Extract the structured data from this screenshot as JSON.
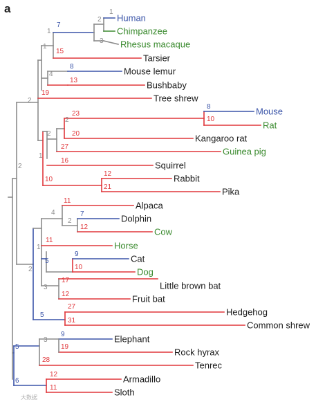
{
  "panel_label": "a",
  "watermark": "大数据",
  "colors": {
    "grey": "#8c8c8c",
    "red": "#e0363a",
    "blue": "#3a54a8",
    "green": "#3a8a2e",
    "black": "#1a1a1a"
  },
  "taxa": [
    {
      "name": "Human",
      "color": "blue"
    },
    {
      "name": "Chimpanzee",
      "color": "green"
    },
    {
      "name": "Rhesus macaque",
      "color": "green"
    },
    {
      "name": "Tarsier",
      "color": "black"
    },
    {
      "name": "Mouse lemur",
      "color": "black"
    },
    {
      "name": "Bushbaby",
      "color": "black"
    },
    {
      "name": "Tree shrew",
      "color": "black"
    },
    {
      "name": "Mouse",
      "color": "blue"
    },
    {
      "name": "Rat",
      "color": "green"
    },
    {
      "name": "Kangaroo rat",
      "color": "black"
    },
    {
      "name": "Guinea pig",
      "color": "green"
    },
    {
      "name": "Squirrel",
      "color": "black"
    },
    {
      "name": "Rabbit",
      "color": "black"
    },
    {
      "name": "Pika",
      "color": "black"
    },
    {
      "name": "Alpaca",
      "color": "black"
    },
    {
      "name": "Dolphin",
      "color": "black"
    },
    {
      "name": "Cow",
      "color": "green"
    },
    {
      "name": "Horse",
      "color": "green"
    },
    {
      "name": "Cat",
      "color": "black"
    },
    {
      "name": "Dog",
      "color": "green"
    },
    {
      "name": "Little brown bat",
      "color": "black"
    },
    {
      "name": "Fruit bat",
      "color": "black"
    },
    {
      "name": "Hedgehog",
      "color": "black"
    },
    {
      "name": "Common shrew",
      "color": "black"
    },
    {
      "name": "Elephant",
      "color": "black"
    },
    {
      "name": "Rock hyrax",
      "color": "black"
    },
    {
      "name": "Tenrec",
      "color": "black"
    },
    {
      "name": "Armadillo",
      "color": "black"
    },
    {
      "name": "Sloth",
      "color": "black"
    }
  ],
  "node_labels": [
    {
      "text": "1",
      "color": "grey"
    },
    {
      "text": "2",
      "color": "grey"
    },
    {
      "text": "3",
      "color": "grey"
    },
    {
      "text": "7",
      "color": "blue"
    },
    {
      "text": "1",
      "color": "grey"
    },
    {
      "text": "1",
      "color": "grey"
    },
    {
      "text": "15",
      "color": "red"
    },
    {
      "text": "4",
      "color": "grey"
    },
    {
      "text": "8",
      "color": "blue"
    },
    {
      "text": "13",
      "color": "red"
    },
    {
      "text": "19",
      "color": "red"
    },
    {
      "text": "2",
      "color": "grey"
    },
    {
      "text": "8",
      "color": "blue"
    },
    {
      "text": "10",
      "color": "red"
    },
    {
      "text": "23",
      "color": "red"
    },
    {
      "text": "2",
      "color": "grey"
    },
    {
      "text": "20",
      "color": "red"
    },
    {
      "text": "2",
      "color": "grey"
    },
    {
      "text": "27",
      "color": "red"
    },
    {
      "text": "1",
      "color": "grey"
    },
    {
      "text": "16",
      "color": "red"
    },
    {
      "text": "12",
      "color": "red"
    },
    {
      "text": "10",
      "color": "red"
    },
    {
      "text": "21",
      "color": "red"
    },
    {
      "text": "2",
      "color": "grey"
    },
    {
      "text": "11",
      "color": "red"
    },
    {
      "text": "4",
      "color": "grey"
    },
    {
      "text": "7",
      "color": "blue"
    },
    {
      "text": "2",
      "color": "grey"
    },
    {
      "text": "12",
      "color": "red"
    },
    {
      "text": "1",
      "color": "grey"
    },
    {
      "text": "11",
      "color": "red"
    },
    {
      "text": "9",
      "color": "blue"
    },
    {
      "text": "5",
      "color": "blue"
    },
    {
      "text": "10",
      "color": "red"
    },
    {
      "text": "2",
      "color": "grey"
    },
    {
      "text": "17",
      "color": "red"
    },
    {
      "text": "3",
      "color": "grey"
    },
    {
      "text": "12",
      "color": "red"
    },
    {
      "text": "27",
      "color": "red"
    },
    {
      "text": "5",
      "color": "blue"
    },
    {
      "text": "31",
      "color": "red"
    },
    {
      "text": "9",
      "color": "blue"
    },
    {
      "text": "3",
      "color": "grey"
    },
    {
      "text": "19",
      "color": "red"
    },
    {
      "text": "5",
      "color": "blue"
    },
    {
      "text": "28",
      "color": "red"
    },
    {
      "text": "12",
      "color": "red"
    },
    {
      "text": "6",
      "color": "blue"
    },
    {
      "text": "11",
      "color": "red"
    }
  ]
}
